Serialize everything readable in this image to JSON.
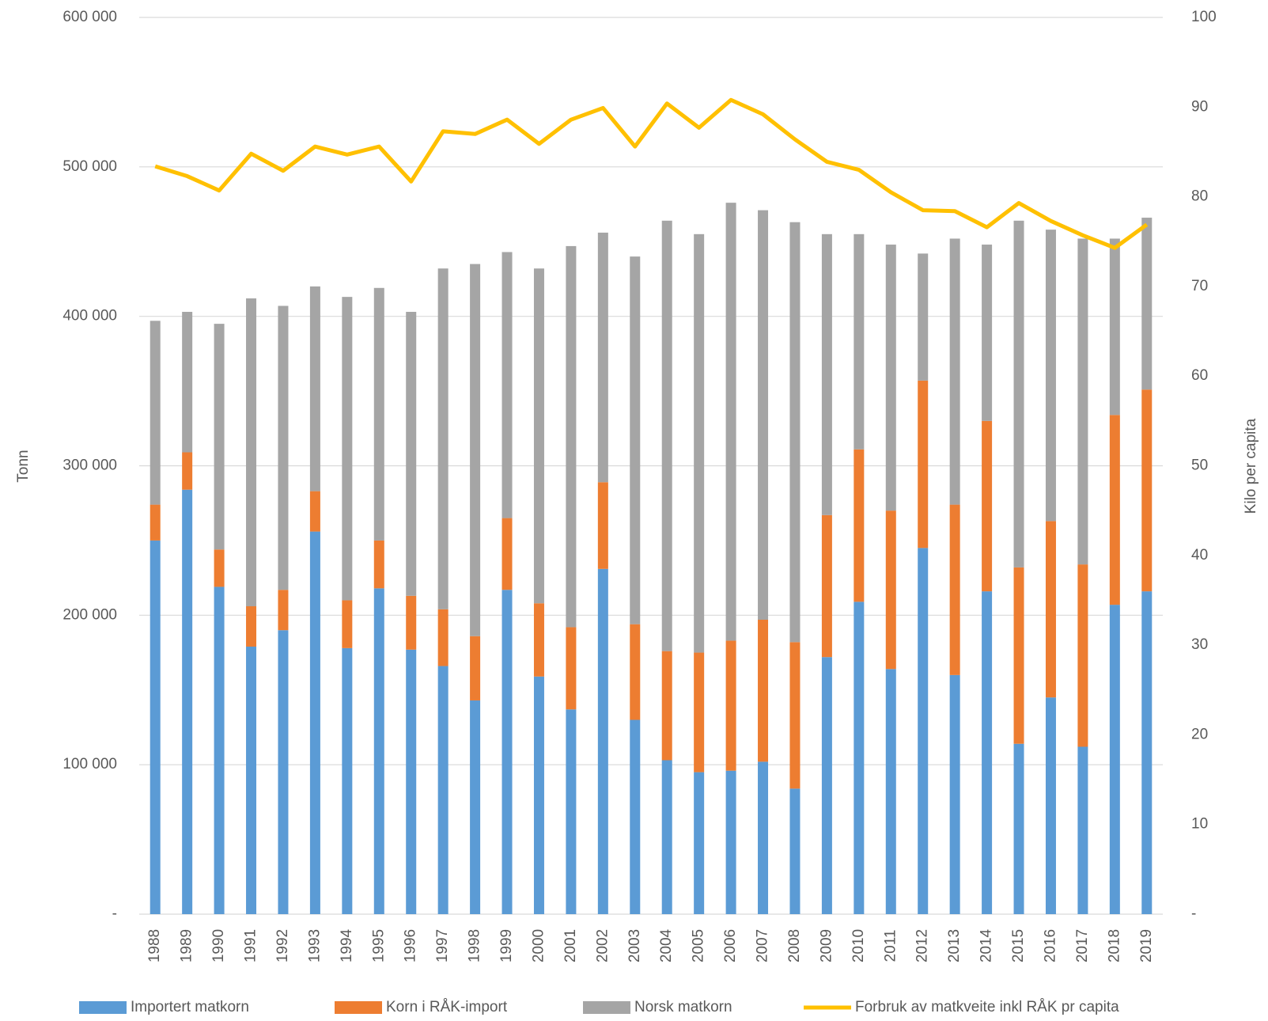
{
  "chart_data": {
    "type": "bar",
    "stacked": true,
    "categories": [
      "1988",
      "1989",
      "1990",
      "1991",
      "1992",
      "1993",
      "1994",
      "1995",
      "1996",
      "1997",
      "1998",
      "1999",
      "2000",
      "2001",
      "2002",
      "2003",
      "2004",
      "2005",
      "2006",
      "2007",
      "2008",
      "2009",
      "2010",
      "2011",
      "2012",
      "2013",
      "2014",
      "2015",
      "2016",
      "2017",
      "2018",
      "2019"
    ],
    "series": [
      {
        "name": "Importert matkorn",
        "color": "#5b9bd5",
        "type": "bar",
        "values": [
          250000,
          284000,
          219000,
          179000,
          190000,
          256000,
          178000,
          218000,
          177000,
          166000,
          143000,
          217000,
          159000,
          137000,
          231000,
          130000,
          103000,
          95000,
          96000,
          102000,
          84000,
          172000,
          209000,
          164000,
          245000,
          160000,
          216000,
          114000,
          145000,
          112000,
          207000,
          216000
        ]
      },
      {
        "name": "Korn i RÅK-import",
        "color": "#ed7d31",
        "type": "bar",
        "values": [
          24000,
          25000,
          25000,
          27000,
          27000,
          27000,
          32000,
          32000,
          36000,
          38000,
          43000,
          48000,
          49000,
          55000,
          58000,
          64000,
          73000,
          80000,
          87000,
          95000,
          98000,
          95000,
          102000,
          106000,
          112000,
          114000,
          114000,
          118000,
          118000,
          122000,
          127000,
          135000
        ]
      },
      {
        "name": "Norsk matkorn",
        "color": "#a5a5a5",
        "type": "bar",
        "values": [
          123000,
          94000,
          151000,
          206000,
          190000,
          137000,
          203000,
          169000,
          190000,
          228000,
          249000,
          178000,
          224000,
          255000,
          167000,
          246000,
          288000,
          280000,
          293000,
          274000,
          281000,
          188000,
          144000,
          178000,
          85000,
          178000,
          118000,
          232000,
          195000,
          218000,
          118000,
          115000
        ]
      },
      {
        "name": "Forbruk av matkveite inkl RÅK pr capita",
        "color": "#ffc000",
        "type": "line",
        "axis": "y2",
        "values": [
          83.4,
          82.3,
          80.7,
          84.8,
          82.9,
          85.6,
          84.7,
          85.6,
          81.7,
          87.3,
          87.0,
          88.6,
          85.9,
          88.6,
          89.9,
          85.6,
          90.4,
          87.7,
          90.8,
          89.2,
          86.4,
          83.9,
          83.0,
          80.5,
          78.5,
          78.4,
          76.6,
          79.3,
          77.3,
          75.7,
          74.3,
          76.9
        ]
      }
    ],
    "y_label": "Tonn",
    "y2_label": "Kilo per capita",
    "ylim": [
      0,
      600000
    ],
    "yticks": [
      {
        "value": 0,
        "label": "-"
      },
      {
        "value": 100000,
        "label": "100 000"
      },
      {
        "value": 200000,
        "label": "200 000"
      },
      {
        "value": 300000,
        "label": "300 000"
      },
      {
        "value": 400000,
        "label": "400 000"
      },
      {
        "value": 500000,
        "label": "500 000"
      },
      {
        "value": 600000,
        "label": "600 000"
      }
    ],
    "y2lim": [
      0,
      100
    ],
    "y2ticks": [
      {
        "value": 0,
        "label": "-"
      },
      10,
      20,
      30,
      40,
      50,
      60,
      70,
      80,
      90,
      100
    ],
    "grid": true,
    "legend": "bottom"
  }
}
